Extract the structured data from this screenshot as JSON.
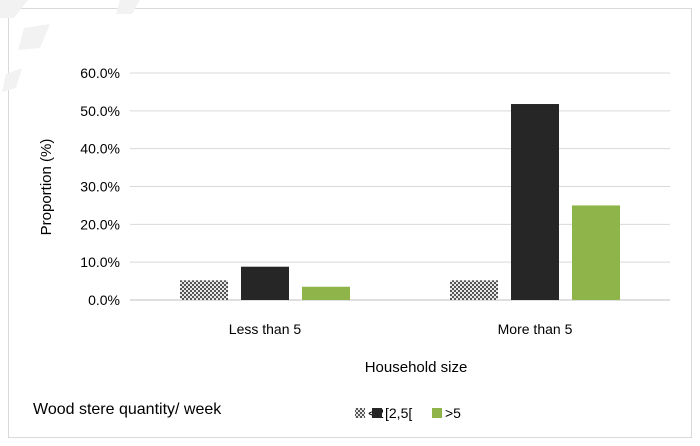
{
  "chart_data": {
    "type": "bar",
    "categories": [
      "Less than 5",
      "More than 5"
    ],
    "series": [
      {
        "name": "<2",
        "values": [
          5.2,
          5.2
        ],
        "color": "#9a9a9a",
        "pattern": "checker"
      },
      {
        "name": "[2,5[",
        "values": [
          8.8,
          51.8
        ],
        "color": "#262626"
      },
      {
        "name": ">5",
        "values": [
          3.5,
          25.0
        ],
        "color": "#8fb54a"
      }
    ],
    "xlabel": "Household size",
    "ylabel": "Proportion (%)",
    "ylim": [
      0,
      60
    ],
    "yticks": [
      "0.0%",
      "10.0%",
      "20.0%",
      "30.0%",
      "40.0%",
      "50.0%",
      "60.0%"
    ],
    "grid": true,
    "legend_title": "Wood stere quantity/ week",
    "legend_position": "bottom"
  }
}
